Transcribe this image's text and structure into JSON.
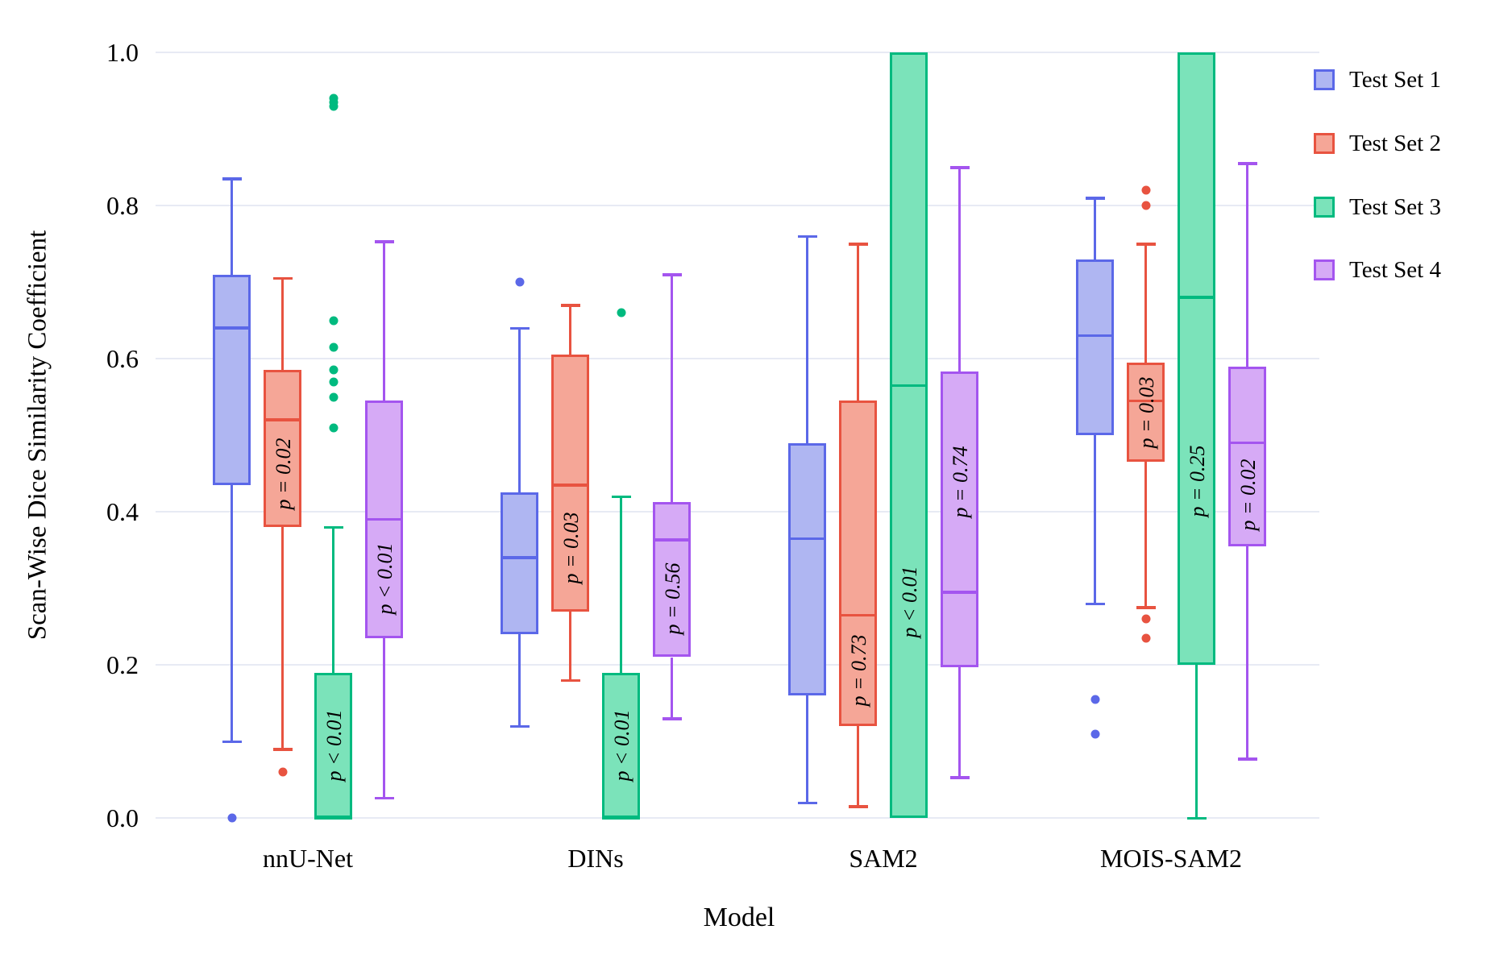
{
  "figure": {
    "background": "#ffffff",
    "grid_color": "#e7eaf4"
  },
  "y_axis": {
    "label": "Scan-Wise Dice Similarity Coefficient",
    "ticks": [
      "0.0",
      "0.2",
      "0.4",
      "0.6",
      "0.8",
      "1.0"
    ],
    "tick_values": [
      0.0,
      0.2,
      0.4,
      0.6,
      0.8,
      1.0
    ]
  },
  "x_axis": {
    "label": "Model",
    "categories": [
      "nnU-Net",
      "DINs",
      "SAM2",
      "MOIS-SAM2"
    ]
  },
  "legend": {
    "items": [
      "Test Set 1",
      "Test Set 2",
      "Test Set 3",
      "Test Set 4"
    ]
  },
  "chart_data": {
    "type": "box",
    "title": "",
    "xlabel": "Model",
    "ylabel": "Scan-Wise Dice Similarity Coefficient",
    "ylim": [
      0.0,
      1.0
    ],
    "yticks": [
      0.0,
      0.2,
      0.4,
      0.6,
      0.8,
      1.0
    ],
    "grid": true,
    "legend_position": "upper-right-outside",
    "categories": [
      "nnU-Net",
      "DINs",
      "SAM2",
      "MOIS-SAM2"
    ],
    "series": [
      {
        "name": "Test Set 1",
        "fill": "#afb6f2",
        "stroke": "#5b68e8",
        "boxes": [
          {
            "whislo": 0.1,
            "q1": 0.435,
            "med": 0.64,
            "q3": 0.71,
            "whishi": 0.835,
            "fliers": [
              0.0
            ],
            "p_label": null
          },
          {
            "whislo": 0.12,
            "q1": 0.24,
            "med": 0.34,
            "q3": 0.425,
            "whishi": 0.64,
            "fliers": [
              0.7
            ],
            "p_label": null
          },
          {
            "whislo": 0.02,
            "q1": 0.16,
            "med": 0.365,
            "q3": 0.49,
            "whishi": 0.76,
            "fliers": [],
            "p_label": null
          },
          {
            "whislo": 0.28,
            "q1": 0.5,
            "med": 0.63,
            "q3": 0.73,
            "whishi": 0.81,
            "fliers": [
              0.155,
              0.11
            ],
            "p_label": null
          }
        ]
      },
      {
        "name": "Test Set 2",
        "fill": "#f5a697",
        "stroke": "#e85340",
        "boxes": [
          {
            "whislo": 0.09,
            "q1": 0.38,
            "med": 0.52,
            "q3": 0.585,
            "whishi": 0.705,
            "fliers": [
              0.06
            ],
            "p_label": "p = 0.02"
          },
          {
            "whislo": 0.18,
            "q1": 0.27,
            "med": 0.435,
            "q3": 0.605,
            "whishi": 0.67,
            "fliers": [],
            "p_label": "p = 0.03"
          },
          {
            "whislo": 0.015,
            "q1": 0.12,
            "med": 0.265,
            "q3": 0.545,
            "whishi": 0.75,
            "fliers": [],
            "p_label": "p = 0.73"
          },
          {
            "whislo": 0.275,
            "q1": 0.465,
            "med": 0.545,
            "q3": 0.595,
            "whishi": 0.75,
            "fliers": [
              0.82,
              0.8,
              0.26,
              0.235
            ],
            "p_label": "p = 0.03"
          }
        ]
      },
      {
        "name": "Test Set 3",
        "fill": "#7be3ba",
        "stroke": "#00ba7f",
        "boxes": [
          {
            "whislo": 0.0,
            "q1": 0.0,
            "med": 0.0,
            "q3": 0.19,
            "whishi": 0.38,
            "fliers": [
              0.51,
              0.55,
              0.57,
              0.585,
              0.615,
              0.65,
              0.93,
              0.935,
              0.94
            ],
            "p_label": "p < 0.01"
          },
          {
            "whislo": 0.0,
            "q1": 0.0,
            "med": 0.0,
            "q3": 0.19,
            "whishi": 0.42,
            "fliers": [
              0.66
            ],
            "p_label": "p < 0.01"
          },
          {
            "whislo": 0.0,
            "q1": 0.0,
            "med": 0.565,
            "q3": 1.0,
            "whishi": 1.0,
            "fliers": [],
            "p_label": "p < 0.01"
          },
          {
            "whislo": 0.0,
            "q1": 0.2,
            "med": 0.68,
            "q3": 1.0,
            "whishi": 1.0,
            "fliers": [],
            "p_label": "p = 0.25"
          }
        ]
      },
      {
        "name": "Test Set 4",
        "fill": "#d6aaf6",
        "stroke": "#a455ef",
        "boxes": [
          {
            "whislo": 0.026,
            "q1": 0.235,
            "med": 0.39,
            "q3": 0.545,
            "whishi": 0.753,
            "fliers": [],
            "p_label": "p < 0.01"
          },
          {
            "whislo": 0.13,
            "q1": 0.21,
            "med": 0.363,
            "q3": 0.413,
            "whishi": 0.71,
            "fliers": [],
            "p_label": "p = 0.56"
          },
          {
            "whislo": 0.053,
            "q1": 0.197,
            "med": 0.295,
            "q3": 0.583,
            "whishi": 0.85,
            "fliers": [],
            "p_label": "p = 0.74"
          },
          {
            "whislo": 0.077,
            "q1": 0.355,
            "med": 0.49,
            "q3": 0.59,
            "whishi": 0.855,
            "fliers": [],
            "p_label": "p = 0.02"
          }
        ]
      }
    ]
  }
}
